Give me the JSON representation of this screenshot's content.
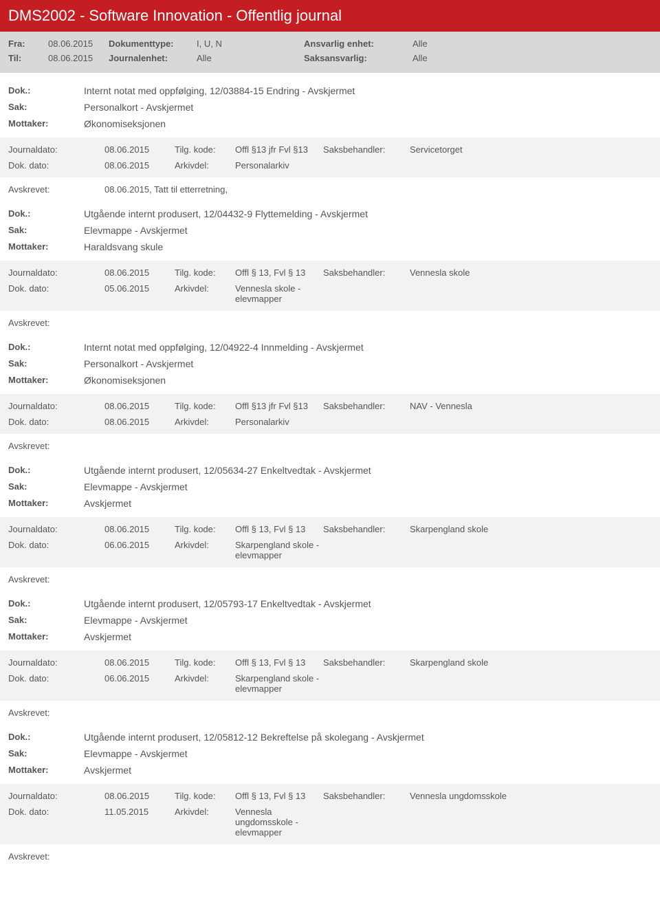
{
  "header": {
    "title": "DMS2002 - Software Innovation - Offentlig journal"
  },
  "filter": {
    "fra_label": "Fra:",
    "fra_value": "08.06.2015",
    "til_label": "Til:",
    "til_value": "08.06.2015",
    "dokumenttype_label": "Dokumenttype:",
    "dokumenttype_value": "I, U, N",
    "journalenhet_label": "Journalenhet:",
    "journalenhet_value": "Alle",
    "ansvarlig_label": "Ansvarlig enhet:",
    "ansvarlig_value": "Alle",
    "saksansvarlig_label": "Saksansvarlig:",
    "saksansvarlig_value": "Alle"
  },
  "labels": {
    "dok": "Dok.:",
    "sak": "Sak:",
    "mottaker": "Mottaker:",
    "journaldato": "Journaldato:",
    "dokdato": "Dok. dato:",
    "tilgkode": "Tilg. kode:",
    "arkivdel": "Arkivdel:",
    "saksbehandler": "Saksbehandler:",
    "avskrevet": "Avskrevet:"
  },
  "entries": [
    {
      "dok": "Internt notat med oppfølging, 12/03884-15 Endring - Avskjermet",
      "sak": "Personalkort - Avskjermet",
      "mottaker": "Økonomiseksjonen",
      "journaldato": "08.06.2015",
      "tilgkode": "Offl §13 jfr Fvl §13",
      "saksbehandler": "Servicetorget",
      "dokdato": "08.06.2015",
      "arkivdel": "Personalarkiv",
      "avskrevet": "08.06.2015, Tatt til etterretning,"
    },
    {
      "dok": "Utgående internt produsert, 12/04432-9 Flyttemelding - Avskjermet",
      "sak": "Elevmappe - Avskjermet",
      "mottaker": "Haraldsvang skule",
      "journaldato": "08.06.2015",
      "tilgkode": "Offl § 13, Fvl § 13",
      "saksbehandler": "Vennesla skole",
      "dokdato": "05.06.2015",
      "arkivdel": "Vennesla skole - elevmapper",
      "avskrevet": ""
    },
    {
      "dok": "Internt notat med oppfølging, 12/04922-4 Innmelding - Avskjermet",
      "sak": "Personalkort - Avskjermet",
      "mottaker": "Økonomiseksjonen",
      "journaldato": "08.06.2015",
      "tilgkode": "Offl §13 jfr Fvl §13",
      "saksbehandler": "NAV - Vennesla",
      "dokdato": "08.06.2015",
      "arkivdel": "Personalarkiv",
      "avskrevet": ""
    },
    {
      "dok": "Utgående internt produsert, 12/05634-27 Enkeltvedtak - Avskjermet",
      "sak": "Elevmappe - Avskjermet",
      "mottaker": "Avskjermet",
      "journaldato": "08.06.2015",
      "tilgkode": "Offl § 13, Fvl § 13",
      "saksbehandler": "Skarpengland skole",
      "dokdato": "06.06.2015",
      "arkivdel": "Skarpengland skole - elevmapper",
      "avskrevet": ""
    },
    {
      "dok": "Utgående internt produsert, 12/05793-17 Enkeltvedtak - Avskjermet",
      "sak": "Elevmappe - Avskjermet",
      "mottaker": "Avskjermet",
      "journaldato": "08.06.2015",
      "tilgkode": "Offl § 13, Fvl § 13",
      "saksbehandler": "Skarpengland skole",
      "dokdato": "06.06.2015",
      "arkivdel": "Skarpengland skole - elevmapper",
      "avskrevet": ""
    },
    {
      "dok": "Utgående internt produsert, 12/05812-12 Bekreftelse på skolegang - Avskjermet",
      "sak": "Elevmappe - Avskjermet",
      "mottaker": "Avskjermet",
      "journaldato": "08.06.2015",
      "tilgkode": "Offl § 13, Fvl § 13",
      "saksbehandler": "Vennesla ungdomsskole",
      "dokdato": "11.05.2015",
      "arkivdel": "Vennesla ungdomsskole - elevmapper",
      "avskrevet": ""
    }
  ]
}
